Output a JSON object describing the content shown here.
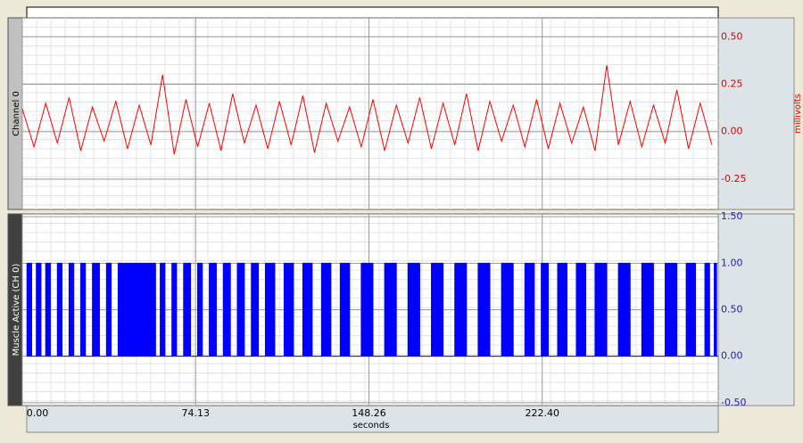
{
  "chart_data": [
    {
      "type": "line",
      "y_label": "Channel 0",
      "y2_label": "millivolts",
      "label_bg": "#c0c0c0",
      "label_color": "#000000",
      "axis_color": "#e00000",
      "xlim": [
        0,
        297.7
      ],
      "ylim": [
        -0.41,
        0.6
      ],
      "yticks": [
        {
          "value": 0.5,
          "label": "0.50"
        },
        {
          "value": 0.25,
          "label": "0.25"
        },
        {
          "value": 0,
          "label": "0.00"
        },
        {
          "value": -0.25,
          "label": "-0.25"
        }
      ],
      "x": [
        0,
        5,
        10,
        15,
        20,
        25,
        30,
        35,
        40,
        45,
        50,
        55,
        60,
        65,
        70,
        75,
        80,
        85,
        90,
        95,
        100,
        105,
        110,
        115,
        120,
        125,
        130,
        135,
        140,
        145,
        150,
        155,
        160,
        165,
        170,
        175,
        180,
        185,
        190,
        195,
        200,
        205,
        210,
        215,
        220,
        225,
        230,
        235,
        240,
        245,
        250,
        255,
        260,
        265,
        270,
        275,
        280,
        285,
        290,
        295
      ],
      "series": [
        {
          "color": "#ff0000",
          "values": [
            0.12,
            -0.08,
            0.15,
            -0.06,
            0.18,
            -0.1,
            0.13,
            -0.05,
            0.16,
            -0.09,
            0.14,
            -0.07,
            0.3,
            -0.12,
            0.17,
            -0.08,
            0.15,
            -0.1,
            0.2,
            -0.06,
            0.14,
            -0.09,
            0.16,
            -0.07,
            0.19,
            -0.11,
            0.15,
            -0.05,
            0.13,
            -0.08,
            0.17,
            -0.1,
            0.14,
            -0.06,
            0.18,
            -0.09,
            0.15,
            -0.07,
            0.2,
            -0.1,
            0.16,
            -0.05,
            0.14,
            -0.08,
            0.17,
            -0.09,
            0.15,
            -0.06,
            0.13,
            -0.1,
            0.35,
            -0.07,
            0.16,
            -0.08,
            0.14,
            -0.06,
            0.22,
            -0.09,
            0.15,
            -0.07
          ]
        }
      ]
    },
    {
      "type": "step",
      "y_label": "Muscle Active (CH 0)",
      "label_bg": "#404040",
      "label_color": "#ffffff",
      "axis_color": "#2020c0",
      "x_label": "seconds",
      "xlim": [
        0,
        297.7
      ],
      "ylim": [
        -0.53,
        1.53
      ],
      "yticks": [
        {
          "value": 1.5,
          "label": "1.50"
        },
        {
          "value": 1,
          "label": "1.00"
        },
        {
          "value": 0.5,
          "label": "0.50"
        },
        {
          "value": 0,
          "label": "0.00"
        },
        {
          "value": -0.5,
          "label": "-0.50"
        }
      ],
      "xticks": [
        {
          "value": 0,
          "label": "0.00"
        },
        {
          "value": 74.13,
          "label": "74.13"
        },
        {
          "value": 148.26,
          "label": "148.26"
        },
        {
          "value": 222.4,
          "label": "222.40"
        }
      ],
      "x": [
        2,
        4,
        6,
        8,
        10,
        12,
        15,
        17,
        20,
        22,
        25,
        27,
        30,
        33,
        36,
        38,
        41,
        57,
        59,
        61,
        64,
        66,
        69,
        72,
        75,
        77,
        80,
        83,
        86,
        89,
        92,
        95,
        98,
        101,
        104,
        108,
        112,
        116,
        120,
        124,
        128,
        132,
        136,
        140,
        145,
        150,
        155,
        160,
        165,
        170,
        175,
        180,
        185,
        190,
        195,
        200,
        205,
        210,
        215,
        219,
        222,
        225,
        229,
        233,
        237,
        241,
        245,
        250,
        255,
        260,
        265,
        270,
        275,
        280,
        284,
        288,
        292,
        294,
        296,
        297
      ],
      "series": [
        {
          "color": "#0000ff",
          "values": [
            1,
            0,
            1,
            0,
            1,
            0,
            1,
            0,
            1,
            0,
            1,
            0,
            1,
            0,
            1,
            0,
            1,
            0,
            1,
            0,
            1,
            0,
            1,
            0,
            1,
            0,
            1,
            0,
            1,
            0,
            1,
            0,
            1,
            0,
            1,
            0,
            1,
            0,
            1,
            0,
            1,
            0,
            1,
            0,
            1,
            0,
            1,
            0,
            1,
            0,
            1,
            0,
            1,
            0,
            1,
            0,
            1,
            0,
            1,
            0,
            1,
            0,
            1,
            0,
            1,
            0,
            1,
            0,
            1,
            0,
            1,
            0,
            1,
            0,
            1,
            0,
            1,
            0,
            1,
            0
          ]
        }
      ]
    }
  ]
}
